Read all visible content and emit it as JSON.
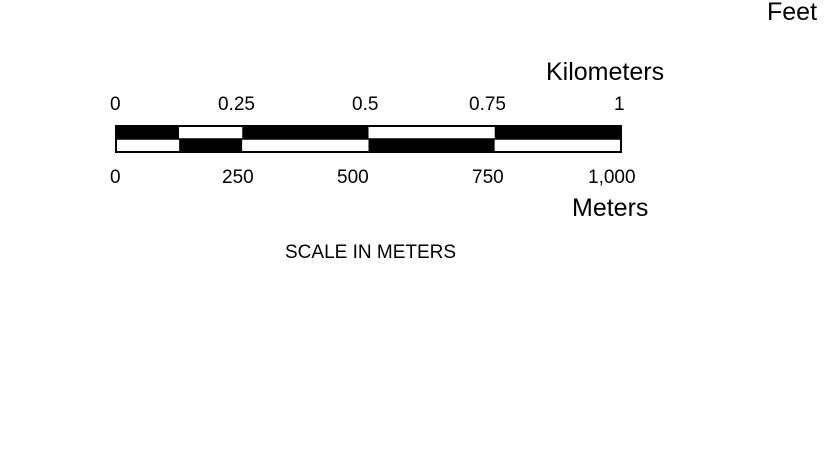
{
  "feet_label": "Feet",
  "top_scale": {
    "unit": "Kilometers",
    "ticks": [
      "0",
      "0.25",
      "0.5",
      "0.75",
      "1"
    ],
    "values": [
      0,
      0.25,
      0.5,
      0.75,
      1
    ]
  },
  "bottom_scale": {
    "unit": "Meters",
    "ticks": [
      "0",
      "250",
      "500",
      "750",
      "1,000"
    ],
    "values": [
      0,
      250,
      500,
      750,
      1000
    ]
  },
  "caption": "SCALE IN METERS",
  "colors": {
    "bar_fill": "#000000",
    "bar_blank": "#ffffff",
    "text": "#000000"
  }
}
